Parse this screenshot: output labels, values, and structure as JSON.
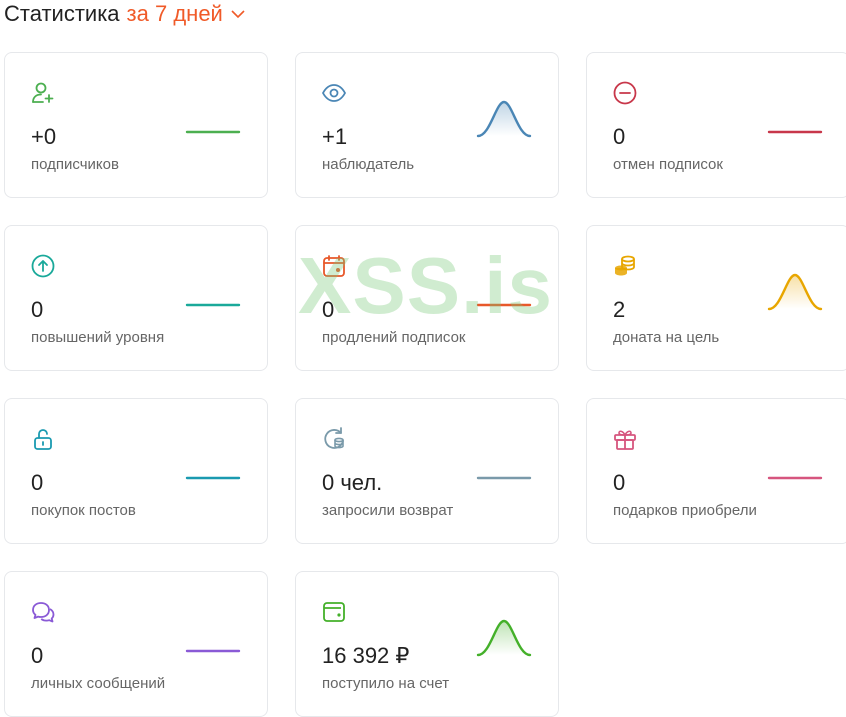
{
  "header": {
    "title": "Статистика",
    "period": "за 7 дней"
  },
  "cards": [
    {
      "value": "+0",
      "label": "подписчиков",
      "icon": "user-plus-icon",
      "color": "#4caf50",
      "spark": "flat"
    },
    {
      "value": "+1",
      "label": "наблюдатель",
      "icon": "eye-icon",
      "color": "#4a86b5",
      "spark": "peak"
    },
    {
      "value": "0",
      "label": "отмен подписок",
      "icon": "minus-circle-icon",
      "color": "#c8374a",
      "spark": "flat"
    },
    {
      "value": "0",
      "label": "повышений уровня",
      "icon": "arrow-up-circle-icon",
      "color": "#1aa99a",
      "spark": "flat"
    },
    {
      "value": "0",
      "label": "продлений подписок",
      "icon": "calendar-icon",
      "color": "#e8582a",
      "spark": "flat"
    },
    {
      "value": "2",
      "label": "доната на цель",
      "icon": "coins-icon",
      "color": "#e8a600",
      "spark": "peak"
    },
    {
      "value": "0",
      "label": "покупок постов",
      "icon": "lock-open-icon",
      "color": "#1a9ab0",
      "spark": "flat"
    },
    {
      "value": "0 чел.",
      "label": "запросили возврат",
      "icon": "refund-icon",
      "color": "#7a9aaa",
      "spark": "flat"
    },
    {
      "value": "0",
      "label": "подарков приобрели",
      "icon": "gift-icon",
      "color": "#d6557e",
      "spark": "flat"
    },
    {
      "value": "0",
      "label": "личных сообщений",
      "icon": "chat-icon",
      "color": "#8a5ad6",
      "spark": "flat"
    },
    {
      "value": "16 392 ₽",
      "label": "поступило на счет",
      "icon": "wallet-icon",
      "color": "#44b02a",
      "spark": "peak"
    }
  ],
  "watermark": "XSS.is"
}
